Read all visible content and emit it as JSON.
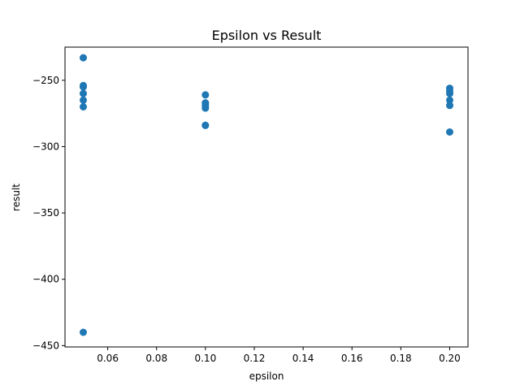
{
  "chart_data": {
    "type": "scatter",
    "title": "Epsilon vs Result",
    "xlabel": "epsilon",
    "ylabel": "result",
    "xlim": [
      0.0425,
      0.2075
    ],
    "ylim": [
      -451,
      -225
    ],
    "xticks": [
      0.06,
      0.08,
      0.1,
      0.12,
      0.14,
      0.16,
      0.18,
      0.2
    ],
    "xtick_labels": [
      "0.06",
      "0.08",
      "0.10",
      "0.12",
      "0.14",
      "0.16",
      "0.18",
      "0.20"
    ],
    "yticks": [
      -250,
      -300,
      -350,
      -400,
      -450
    ],
    "ytick_labels": [
      "−250",
      "−300",
      "−350",
      "−400",
      "−450"
    ],
    "grid": false,
    "marker_color": "#1f77b4",
    "series": [
      {
        "x": [
          0.05,
          0.05,
          0.05,
          0.05,
          0.05,
          0.05,
          0.05,
          0.1,
          0.1,
          0.1,
          0.1,
          0.1,
          0.1,
          0.2,
          0.2,
          0.2,
          0.2,
          0.2,
          0.2
        ],
        "y": [
          -233,
          -254,
          -255,
          -260,
          -265,
          -270,
          -440,
          -261,
          -267,
          -269,
          -271,
          -284,
          -284,
          -256,
          -258,
          -260,
          -265,
          -269,
          -289
        ]
      }
    ]
  }
}
